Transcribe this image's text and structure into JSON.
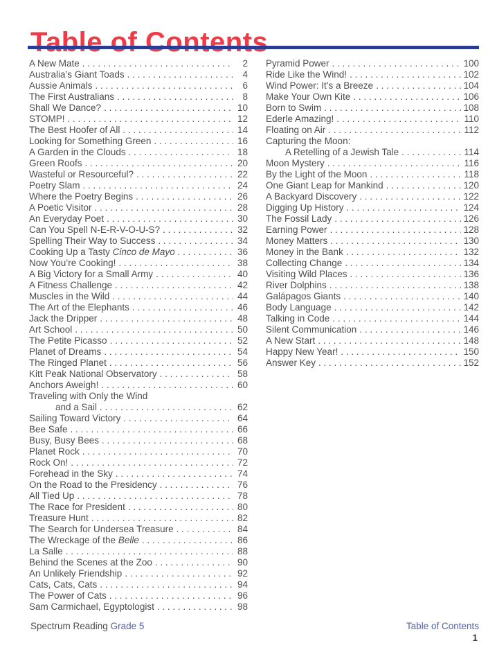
{
  "page": {
    "title": "Table of Contents"
  },
  "colors": {
    "title_red": "#ee3b46",
    "rule_blue": "#2a3b94",
    "footer_accent": "#5560a8",
    "body_text": "#4e4e4e"
  },
  "toc": {
    "left": [
      {
        "t": "A New Mate",
        "p": "2"
      },
      {
        "t": "Australia’s Giant Toads",
        "p": "4"
      },
      {
        "t": "Aussie Animals",
        "p": "6"
      },
      {
        "t": "The First Australians",
        "p": "8"
      },
      {
        "t": "Shall We Dance?",
        "p": "10"
      },
      {
        "t": "STOMP!",
        "p": "12"
      },
      {
        "t": "The Best Hoofer of All",
        "p": "14"
      },
      {
        "t": "Looking for Something Green",
        "p": "16"
      },
      {
        "t": "A Garden in the Clouds",
        "p": "18"
      },
      {
        "t": "Green Roofs",
        "p": "20"
      },
      {
        "t": "Wasteful or Resourceful?",
        "p": "22"
      },
      {
        "t": "Poetry Slam",
        "p": "24"
      },
      {
        "t": "Where the Poetry Begins",
        "p": "26"
      },
      {
        "t": "A Poetic Visitor",
        "p": "28"
      },
      {
        "t": "An Everyday Poet",
        "p": "30"
      },
      {
        "t": "Can You Spell N-E-R-V-O-U-S?",
        "p": "32"
      },
      {
        "t": "Spelling Their Way to Success",
        "p": "34"
      },
      {
        "parts": [
          {
            "t": "Cooking Up a Tasty "
          },
          {
            "t": "Cinco de Mayo",
            "i": true
          }
        ],
        "p": "36"
      },
      {
        "t": "Now You’re Cooking!",
        "p": "38"
      },
      {
        "t": "A Big Victory for a Small Army",
        "p": "40"
      },
      {
        "t": "A Fitness Challenge",
        "p": "42"
      },
      {
        "t": "Muscles in the Wild",
        "p": "44"
      },
      {
        "t": "The Art of the Elephants",
        "p": "46"
      },
      {
        "t": "Jack the Dripper",
        "p": "48"
      },
      {
        "t": "Art School",
        "p": "50"
      },
      {
        "t": "The Petite Picasso",
        "p": "52"
      },
      {
        "t": "Planet of Dreams",
        "p": "54"
      },
      {
        "t": "The Ringed Planet",
        "p": "56"
      },
      {
        "t": "Kitt Peak National Observatory",
        "p": "58"
      },
      {
        "t": "Anchors Aweigh!",
        "p": "60"
      },
      {
        "t": "Traveling with Only the Wind"
      },
      {
        "t": "and a Sail",
        "p": "62",
        "indent": true
      },
      {
        "t": "Sailing Toward Victory",
        "p": "64"
      },
      {
        "t": "Bee Safe",
        "p": "66"
      },
      {
        "t": "Busy, Busy Bees",
        "p": "68"
      },
      {
        "t": "Planet Rock",
        "p": "70"
      },
      {
        "t": "Rock On!",
        "p": "72"
      },
      {
        "t": "Forehead in the Sky",
        "p": "74"
      },
      {
        "t": "On the Road to the Presidency",
        "p": "76"
      },
      {
        "t": "All Tied Up",
        "p": "78"
      },
      {
        "t": "The Race for President",
        "p": "80"
      },
      {
        "t": "Treasure Hunt",
        "p": "82"
      },
      {
        "t": "The Search for Undersea Treasure",
        "p": "84"
      },
      {
        "parts": [
          {
            "t": "The Wreckage of the "
          },
          {
            "t": "Belle",
            "i": true
          }
        ],
        "p": "86"
      },
      {
        "t": "La Salle",
        "p": "88"
      },
      {
        "t": "Behind the Scenes at the Zoo",
        "p": "90"
      },
      {
        "t": "An Unlikely Friendship",
        "p": "92"
      },
      {
        "t": "Cats, Cats, Cats",
        "p": "94"
      },
      {
        "t": "The Power of Cats",
        "p": "96"
      },
      {
        "t": "Sam Carmichael, Egyptologist",
        "p": "98"
      }
    ],
    "right": [
      {
        "t": "Pyramid Power",
        "p": "100"
      },
      {
        "t": "Ride Like the Wind!",
        "p": "102"
      },
      {
        "t": "Wind Power: It’s a Breeze",
        "p": "104"
      },
      {
        "t": "Make Your Own Kite",
        "p": "106"
      },
      {
        "t": "Born to Swim",
        "p": "108"
      },
      {
        "t": "Ederle Amazing!",
        "p": "110"
      },
      {
        "t": "Floating on Air",
        "p": "112"
      },
      {
        "t": "Capturing the Moon:"
      },
      {
        "t": "A Retelling of a Jewish Tale",
        "p": "114",
        "indent": true
      },
      {
        "t": "Moon Mystery",
        "p": "116"
      },
      {
        "t": "By the Light of the Moon",
        "p": "118"
      },
      {
        "t": "One Giant Leap for Mankind",
        "p": "120"
      },
      {
        "t": "A Backyard Discovery",
        "p": "122"
      },
      {
        "t": "Digging Up History",
        "p": "124"
      },
      {
        "t": "The Fossil Lady",
        "p": "126"
      },
      {
        "t": "Earning Power",
        "p": "128"
      },
      {
        "t": "Money Matters",
        "p": "130"
      },
      {
        "t": "Money in the Bank",
        "p": "132"
      },
      {
        "t": "Collecting Change",
        "p": "134"
      },
      {
        "t": "Visiting Wild Places",
        "p": "136"
      },
      {
        "t": "River Dolphins",
        "p": "138"
      },
      {
        "t": "Galápagos Giants",
        "p": "140"
      },
      {
        "t": "Body Language",
        "p": "142"
      },
      {
        "t": "Talking in Code",
        "p": "144"
      },
      {
        "t": "Silent Communication",
        "p": "146"
      },
      {
        "t": "A New Start",
        "p": "148"
      },
      {
        "t": "Happy New Year!",
        "p": "150"
      },
      {
        "t": "Answer Key",
        "p": "152"
      }
    ]
  },
  "footer": {
    "book": "Spectrum Reading",
    "grade": "Grade 5",
    "section": "Table of Contents",
    "page_number": "1"
  }
}
